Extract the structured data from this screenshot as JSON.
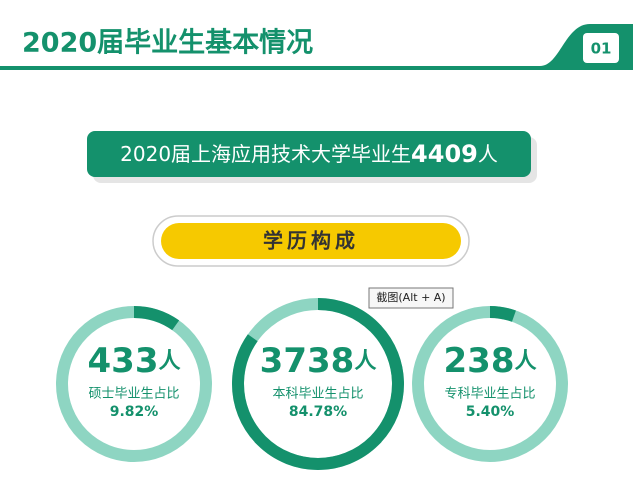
{
  "header": {
    "title": "2020届毕业生基本情况",
    "page_number": "01"
  },
  "headline": {
    "prefix": "2020届上海应用技术大学毕业生",
    "count": "4409",
    "unit": "人"
  },
  "section_label": "学历构成",
  "tooltip": "截图(Alt + A)",
  "stats": [
    {
      "count": "433",
      "unit": "人",
      "label": "硕士毕业生占比",
      "percent": 9.82,
      "percent_label": "9.82%"
    },
    {
      "count": "3738",
      "unit": "人",
      "label": "本科毕业生占比",
      "percent": 84.78,
      "percent_label": "84.78%"
    },
    {
      "count": "238",
      "unit": "人",
      "label": "专科毕业生占比",
      "percent": 5.4,
      "percent_label": "5.40%"
    }
  ]
}
